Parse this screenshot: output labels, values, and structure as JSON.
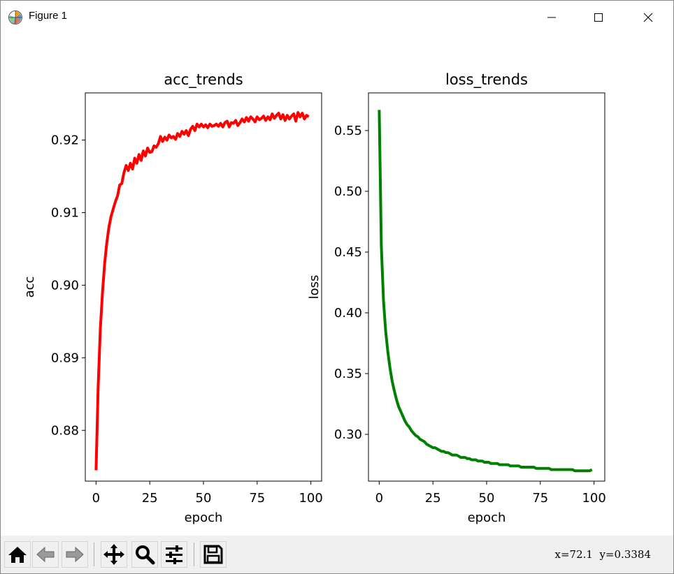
{
  "window": {
    "title": "Figure 1",
    "app_icon": "matplotlib-icon",
    "controls": {
      "minimize": "minimize-icon",
      "maximize": "maximize-icon",
      "close": "close-icon"
    }
  },
  "toolbar": {
    "buttons": [
      {
        "name": "home-button",
        "icon": "home-icon"
      },
      {
        "name": "back-button",
        "icon": "arrow-left-icon"
      },
      {
        "name": "forward-button",
        "icon": "arrow-right-icon"
      },
      {
        "name": "pan-button",
        "icon": "move-icon"
      },
      {
        "name": "zoom-button",
        "icon": "magnifier-icon"
      },
      {
        "name": "subplots-button",
        "icon": "sliders-icon"
      },
      {
        "name": "save-button",
        "icon": "floppy-disk-icon"
      }
    ],
    "coordinates": "x=72.1  y=0.3384"
  },
  "colors": {
    "acc_line": "#ff0000",
    "loss_line": "#008000"
  },
  "chart_data": [
    {
      "type": "line",
      "title": "acc_trends",
      "xlabel": "epoch",
      "ylabel": "acc",
      "xlim": [
        -5,
        105
      ],
      "ylim": [
        0.873,
        0.9265
      ],
      "xticks": [
        0,
        25,
        50,
        75,
        100
      ],
      "xtick_labels": [
        "0",
        "25",
        "50",
        "75",
        "100"
      ],
      "yticks": [
        0.88,
        0.89,
        0.9,
        0.91,
        0.92
      ],
      "ytick_labels": [
        "0.88",
        "0.89",
        "0.90",
        "0.91",
        "0.92"
      ],
      "grid": false,
      "series": [
        {
          "color": "#ff0000",
          "x": [
            0,
            1,
            2,
            3,
            4,
            5,
            6,
            7,
            8,
            9,
            10,
            11,
            12,
            13,
            14,
            15,
            16,
            17,
            18,
            19,
            20,
            21,
            22,
            23,
            24,
            25,
            26,
            27,
            28,
            29,
            30,
            31,
            32,
            33,
            34,
            35,
            36,
            37,
            38,
            39,
            40,
            41,
            42,
            43,
            44,
            45,
            46,
            47,
            48,
            49,
            50,
            51,
            52,
            53,
            54,
            55,
            56,
            57,
            58,
            59,
            60,
            61,
            62,
            63,
            64,
            65,
            66,
            67,
            68,
            69,
            70,
            71,
            72,
            73,
            74,
            75,
            76,
            77,
            78,
            79,
            80,
            81,
            82,
            83,
            84,
            85,
            86,
            87,
            88,
            89,
            90,
            91,
            92,
            93,
            94,
            95,
            96,
            97,
            98,
            99
          ],
          "y": [
            0.8745,
            0.886,
            0.894,
            0.899,
            0.903,
            0.9058,
            0.908,
            0.9095,
            0.9105,
            0.9115,
            0.9123,
            0.9138,
            0.914,
            0.9155,
            0.9165,
            0.9158,
            0.9168,
            0.916,
            0.9175,
            0.9168,
            0.918,
            0.9172,
            0.9185,
            0.9178,
            0.9189,
            0.9183,
            0.9184,
            0.9192,
            0.919,
            0.9195,
            0.9205,
            0.9198,
            0.9204,
            0.92,
            0.9207,
            0.9203,
            0.9205,
            0.9201,
            0.9209,
            0.9205,
            0.9212,
            0.9208,
            0.9213,
            0.9206,
            0.9215,
            0.9219,
            0.9213,
            0.9222,
            0.9218,
            0.9222,
            0.9218,
            0.9221,
            0.9217,
            0.9222,
            0.9219,
            0.922,
            0.9222,
            0.9219,
            0.9223,
            0.9218,
            0.9224,
            0.9226,
            0.9218,
            0.9224,
            0.9223,
            0.9227,
            0.922,
            0.9224,
            0.9229,
            0.9225,
            0.9231,
            0.9226,
            0.9232,
            0.9229,
            0.9225,
            0.9232,
            0.9228,
            0.923,
            0.9233,
            0.9227,
            0.9232,
            0.9228,
            0.9236,
            0.923,
            0.9234,
            0.9237,
            0.9229,
            0.9235,
            0.9227,
            0.9234,
            0.9229,
            0.9233,
            0.9236,
            0.9226,
            0.9238,
            0.9232,
            0.9237,
            0.9229,
            0.9234,
            0.9232
          ]
        }
      ]
    },
    {
      "type": "line",
      "title": "loss_trends",
      "xlabel": "epoch",
      "ylabel": "loss",
      "xlim": [
        -5,
        105
      ],
      "ylim": [
        0.2615,
        0.581
      ],
      "xticks": [
        0,
        25,
        50,
        75,
        100
      ],
      "xtick_labels": [
        "0",
        "25",
        "50",
        "75",
        "100"
      ],
      "yticks": [
        0.3,
        0.35,
        0.4,
        0.45,
        0.5,
        0.55
      ],
      "ytick_labels": [
        "0.30",
        "0.35",
        "0.40",
        "0.45",
        "0.50",
        "0.55"
      ],
      "grid": false,
      "series": [
        {
          "color": "#008000",
          "x": [
            0,
            1,
            2,
            3,
            4,
            5,
            6,
            7,
            8,
            9,
            10,
            11,
            12,
            13,
            14,
            15,
            16,
            17,
            18,
            19,
            20,
            21,
            22,
            23,
            24,
            25,
            26,
            27,
            28,
            29,
            30,
            31,
            32,
            33,
            34,
            35,
            36,
            37,
            38,
            39,
            40,
            41,
            42,
            43,
            44,
            45,
            46,
            47,
            48,
            49,
            50,
            51,
            52,
            53,
            54,
            55,
            56,
            57,
            58,
            59,
            60,
            61,
            62,
            63,
            64,
            65,
            66,
            67,
            68,
            69,
            70,
            71,
            72,
            73,
            74,
            75,
            76,
            77,
            78,
            79,
            80,
            81,
            82,
            83,
            84,
            85,
            86,
            87,
            88,
            89,
            90,
            91,
            92,
            93,
            94,
            95,
            96,
            97,
            98,
            99
          ],
          "y": [
            0.567,
            0.455,
            0.41,
            0.385,
            0.368,
            0.355,
            0.344,
            0.336,
            0.329,
            0.323,
            0.319,
            0.315,
            0.311,
            0.308,
            0.306,
            0.303,
            0.301,
            0.299,
            0.298,
            0.296,
            0.295,
            0.294,
            0.292,
            0.291,
            0.29,
            0.289,
            0.289,
            0.288,
            0.287,
            0.286,
            0.286,
            0.285,
            0.285,
            0.284,
            0.283,
            0.283,
            0.283,
            0.282,
            0.281,
            0.281,
            0.281,
            0.28,
            0.28,
            0.279,
            0.279,
            0.279,
            0.278,
            0.278,
            0.278,
            0.277,
            0.277,
            0.277,
            0.276,
            0.276,
            0.276,
            0.276,
            0.275,
            0.275,
            0.275,
            0.275,
            0.275,
            0.274,
            0.274,
            0.274,
            0.274,
            0.274,
            0.273,
            0.273,
            0.273,
            0.273,
            0.273,
            0.273,
            0.273,
            0.272,
            0.272,
            0.272,
            0.272,
            0.272,
            0.272,
            0.272,
            0.271,
            0.271,
            0.271,
            0.271,
            0.271,
            0.271,
            0.271,
            0.271,
            0.271,
            0.271,
            0.271,
            0.27,
            0.27,
            0.27,
            0.27,
            0.27,
            0.27,
            0.27,
            0.27,
            0.271
          ]
        }
      ]
    }
  ]
}
